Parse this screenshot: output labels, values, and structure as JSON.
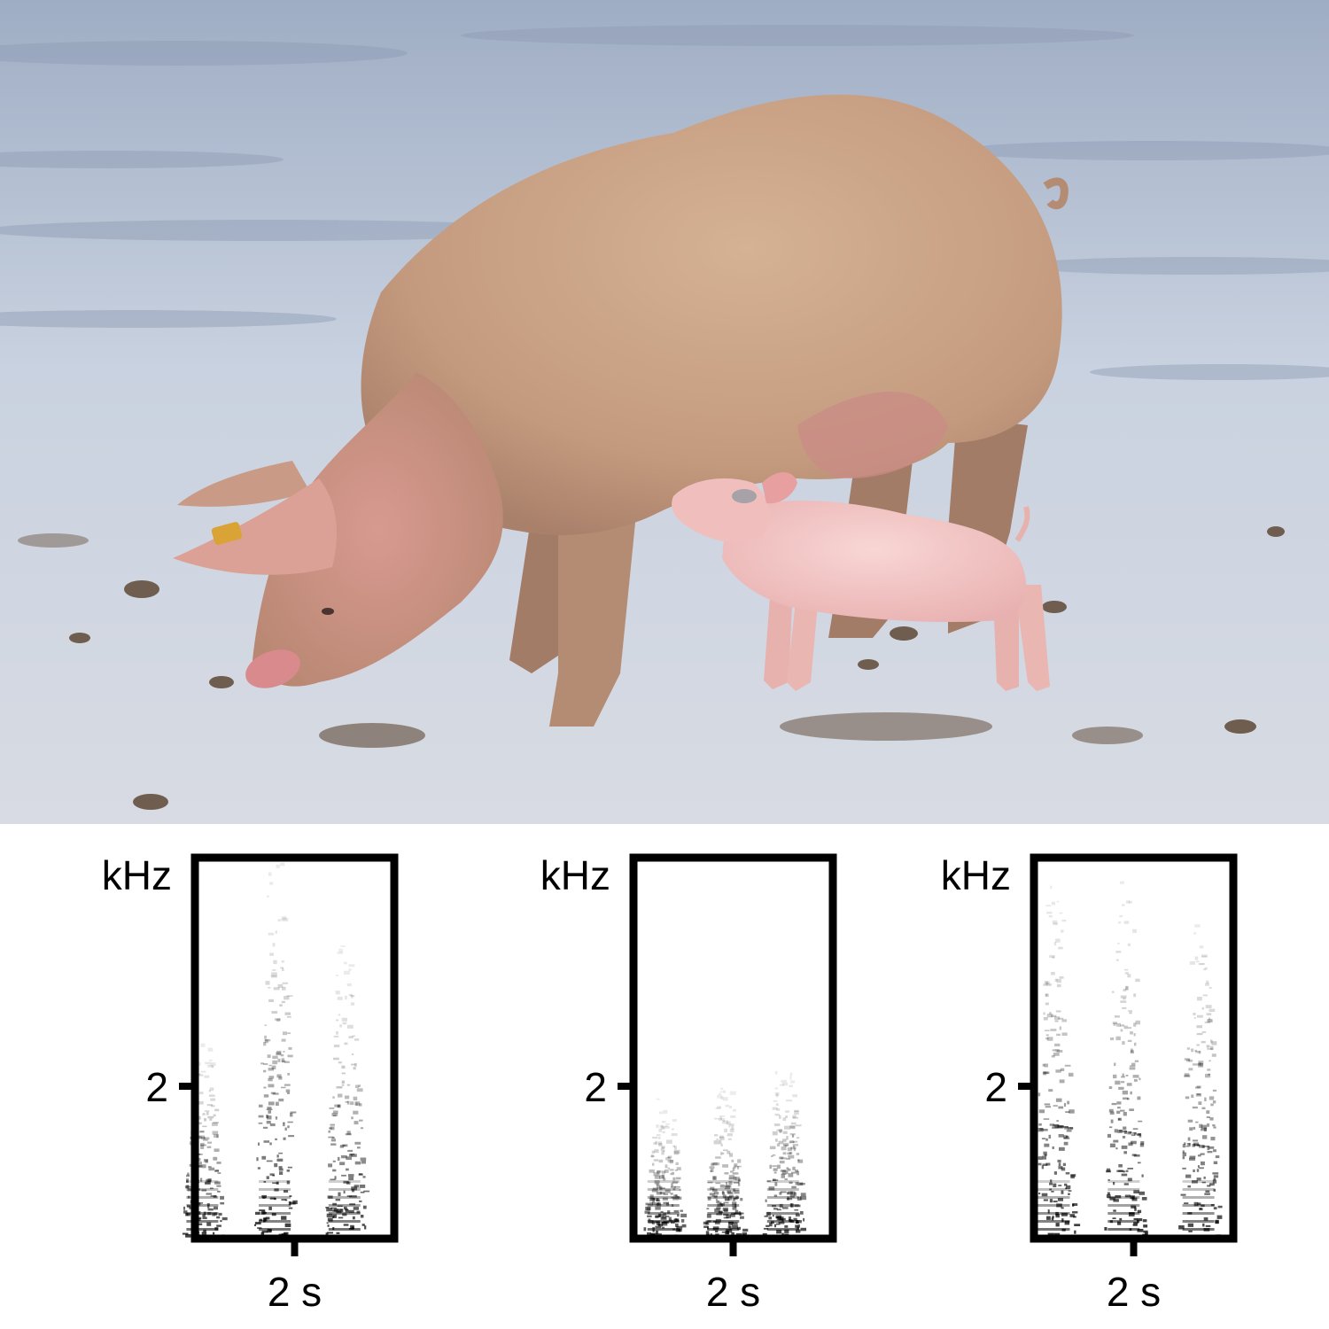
{
  "photo": {
    "subject": "sow-with-suckling-piglet",
    "colors": {
      "sky_ground": "#b8c4d6",
      "sow": "#c9a487",
      "piglet": "#f2c7c6",
      "soil": "#7a6a5c"
    }
  },
  "spectrograms": [
    {
      "y_unit_label": "kHz",
      "y_tick_label": "2",
      "x_tick_label": "2 s",
      "calls": [
        {
          "t": 0.15,
          "f_max": 2.8,
          "onset_energy": 0.9
        },
        {
          "t": 1.6,
          "f_max": 5.0,
          "onset_energy": 0.95
        },
        {
          "t": 3.0,
          "f_max": 4.0,
          "onset_energy": 0.9
        }
      ]
    },
    {
      "y_unit_label": "kHz",
      "y_tick_label": "2",
      "x_tick_label": "2 s",
      "calls": [
        {
          "t": 0.6,
          "f_max": 1.9,
          "onset_energy": 0.85
        },
        {
          "t": 1.8,
          "f_max": 2.1,
          "onset_energy": 0.85
        },
        {
          "t": 3.0,
          "f_max": 2.4,
          "onset_energy": 0.9
        }
      ]
    },
    {
      "y_unit_label": "kHz",
      "y_tick_label": "2",
      "x_tick_label": "2 s",
      "calls": [
        {
          "t": 0.4,
          "f_max": 5.0,
          "onset_energy": 0.95
        },
        {
          "t": 1.8,
          "f_max": 5.0,
          "onset_energy": 0.95
        },
        {
          "t": 3.3,
          "f_max": 4.6,
          "onset_energy": 0.9
        }
      ]
    }
  ]
}
